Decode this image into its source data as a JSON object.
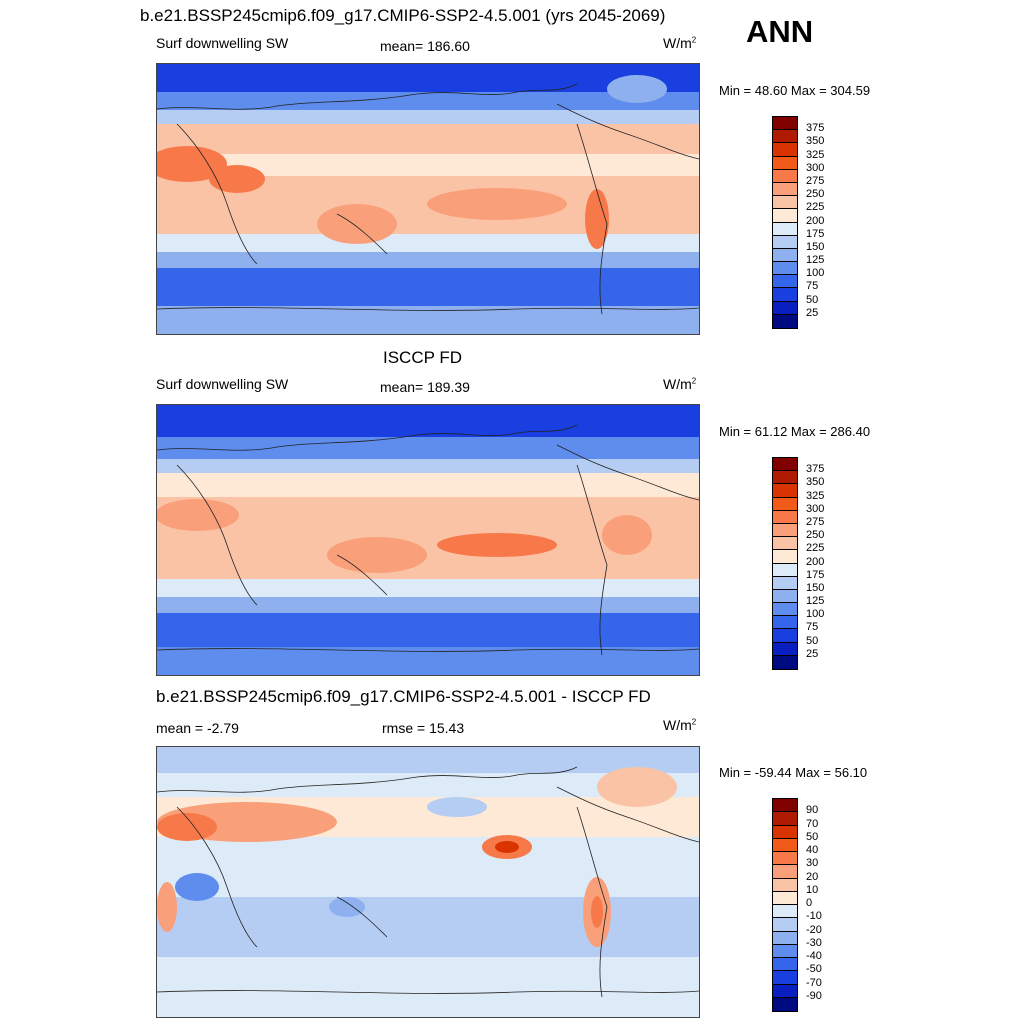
{
  "header": {
    "title": "b.e21.BSSP245cmip6.f09_g17.CMIP6-SSP2-4.5.001 (yrs 2045-2069)",
    "season": "ANN"
  },
  "panels": [
    {
      "id": "model",
      "heading": "",
      "left_label": "Surf downwelling SW",
      "center_label": "mean= 186.60",
      "units": "W/m",
      "units_sup": "2",
      "minmax": "Min =  48.60 Max = 304.59",
      "colorbar": {
        "labels": [
          "375",
          "350",
          "325",
          "300",
          "275",
          "250",
          "225",
          "200",
          "175",
          "150",
          "125",
          "100",
          "75",
          "50",
          "25"
        ],
        "colors": [
          "#800000",
          "#b01a00",
          "#d93300",
          "#f25a1a",
          "#f7794a",
          "#f9a07a",
          "#fbc3a6",
          "#fde9d6",
          "#ddeaf7",
          "#b5cdf2",
          "#8eb0ef",
          "#5f8ded",
          "#3565eb",
          "#1a3fe0",
          "#0a1fc0",
          "#000a80"
        ]
      }
    },
    {
      "id": "obs",
      "heading": "ISCCP FD",
      "left_label": "Surf downwelling SW",
      "center_label": "mean= 189.39",
      "units": "W/m",
      "units_sup": "2",
      "minmax": "Min =  61.12 Max = 286.40",
      "colorbar": {
        "labels": [
          "375",
          "350",
          "325",
          "300",
          "275",
          "250",
          "225",
          "200",
          "175",
          "150",
          "125",
          "100",
          "75",
          "50",
          "25"
        ],
        "colors": [
          "#800000",
          "#b01a00",
          "#d93300",
          "#f25a1a",
          "#f7794a",
          "#f9a07a",
          "#fbc3a6",
          "#fde9d6",
          "#ddeaf7",
          "#b5cdf2",
          "#8eb0ef",
          "#5f8ded",
          "#3565eb",
          "#1a3fe0",
          "#0a1fc0",
          "#000a80"
        ]
      }
    },
    {
      "id": "diff",
      "heading": "b.e21.BSSP245cmip6.f09_g17.CMIP6-SSP2-4.5.001 - ISCCP FD",
      "left_label": "mean =  -2.79",
      "center_label": "rmse =  15.43",
      "units": "W/m",
      "units_sup": "2",
      "minmax": "Min = -59.44 Max =  56.10",
      "colorbar": {
        "labels": [
          "90",
          "70",
          "50",
          "40",
          "30",
          "20",
          "10",
          "0",
          "-10",
          "-20",
          "-30",
          "-40",
          "-50",
          "-70",
          "-90"
        ],
        "colors": [
          "#800000",
          "#b01a00",
          "#d93300",
          "#f25a1a",
          "#f7794a",
          "#f9a07a",
          "#fbc3a6",
          "#fde9d6",
          "#ddeaf7",
          "#b5cdf2",
          "#8eb0ef",
          "#5f8ded",
          "#3565eb",
          "#1a3fe0",
          "#0a1fc0",
          "#000a80"
        ]
      }
    }
  ]
}
